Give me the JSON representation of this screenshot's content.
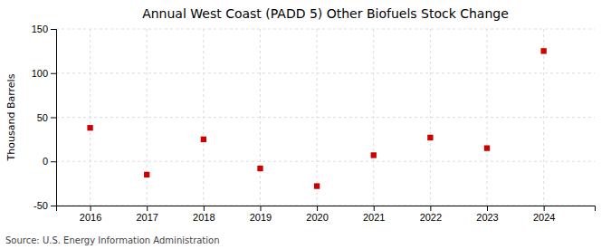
{
  "chart_data": {
    "type": "scatter",
    "title": "Annual West Coast (PADD 5) Other Biofuels Stock Change",
    "ylabel": "Thousand Barrels",
    "annotation": "Source: U.S. Energy Information Administration",
    "x": [
      2016,
      2017,
      2018,
      2019,
      2020,
      2021,
      2022,
      2023,
      2024
    ],
    "values": [
      38,
      -15,
      25,
      -8,
      -28,
      7,
      27,
      15,
      125
    ],
    "xlim": [
      2015.4,
      2024.9
    ],
    "xticks": [
      2016,
      2017,
      2018,
      2019,
      2020,
      2021,
      2022,
      2023,
      2024
    ],
    "ylim": [
      -50,
      150
    ],
    "yticks": [
      -50,
      0,
      50,
      100,
      150
    ],
    "color": "#cc0000",
    "marker": "square",
    "grid": true
  }
}
